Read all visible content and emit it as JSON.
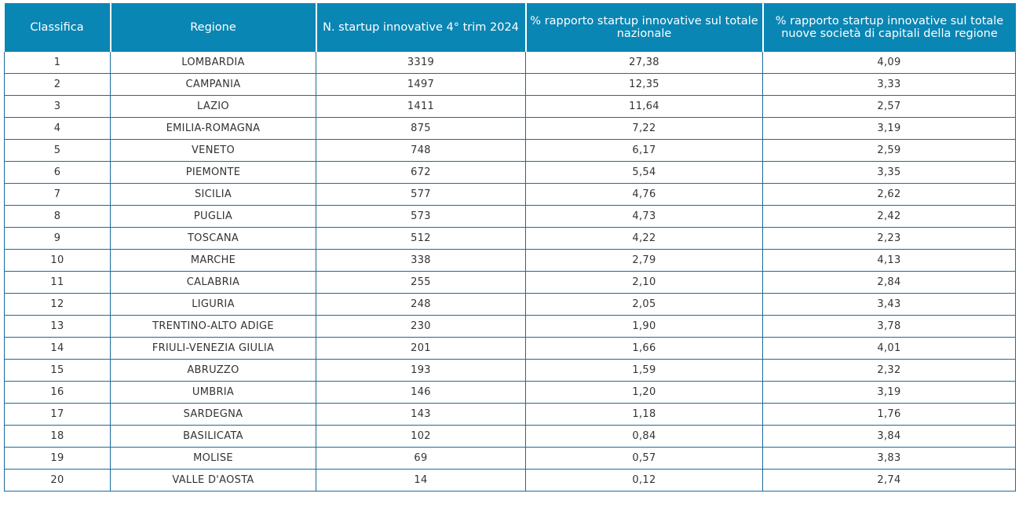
{
  "table": {
    "headers": [
      "Classifica",
      "Regione",
      "N. startup innovative 4° trim 2024",
      "% rapporto startup innovative sul totale nazionale",
      "% rapporto startup innovative sul totale nuove società di capitali della regione"
    ],
    "rows": [
      [
        "1",
        "LOMBARDIA",
        "3319",
        "27,38",
        "4,09"
      ],
      [
        "2",
        "CAMPANIA",
        "1497",
        "12,35",
        "3,33"
      ],
      [
        "3",
        "LAZIO",
        "1411",
        "11,64",
        "2,57"
      ],
      [
        "4",
        "EMILIA-ROMAGNA",
        "875",
        "7,22",
        "3,19"
      ],
      [
        "5",
        "VENETO",
        "748",
        "6,17",
        "2,59"
      ],
      [
        "6",
        "PIEMONTE",
        "672",
        "5,54",
        "3,35"
      ],
      [
        "7",
        "SICILIA",
        "577",
        "4,76",
        "2,62"
      ],
      [
        "8",
        "PUGLIA",
        "573",
        "4,73",
        "2,42"
      ],
      [
        "9",
        "TOSCANA",
        "512",
        "4,22",
        "2,23"
      ],
      [
        "10",
        "MARCHE",
        "338",
        "2,79",
        "4,13"
      ],
      [
        "11",
        "CALABRIA",
        "255",
        "2,10",
        "2,84"
      ],
      [
        "12",
        "LIGURIA",
        "248",
        "2,05",
        "3,43"
      ],
      [
        "13",
        "TRENTINO-ALTO ADIGE",
        "230",
        "1,90",
        "3,78"
      ],
      [
        "14",
        "FRIULI-VENEZIA GIULIA",
        "201",
        "1,66",
        "4,01"
      ],
      [
        "15",
        "ABRUZZO",
        "193",
        "1,59",
        "2,32"
      ],
      [
        "16",
        "UMBRIA",
        "146",
        "1,20",
        "3,19"
      ],
      [
        "17",
        "SARDEGNA",
        "143",
        "1,18",
        "1,76"
      ],
      [
        "18",
        "BASILICATA",
        "102",
        "0,84",
        "3,84"
      ],
      [
        "19",
        "MOLISE",
        "69",
        "0,57",
        "3,83"
      ],
      [
        "20",
        "VALLE D'AOSTA",
        "14",
        "0,12",
        "2,74"
      ]
    ]
  },
  "colors": {
    "header_bg": "#0a86b4",
    "header_text": "#ffffff",
    "grid_line": "#1b6c9c",
    "cell_text": "#333333"
  }
}
